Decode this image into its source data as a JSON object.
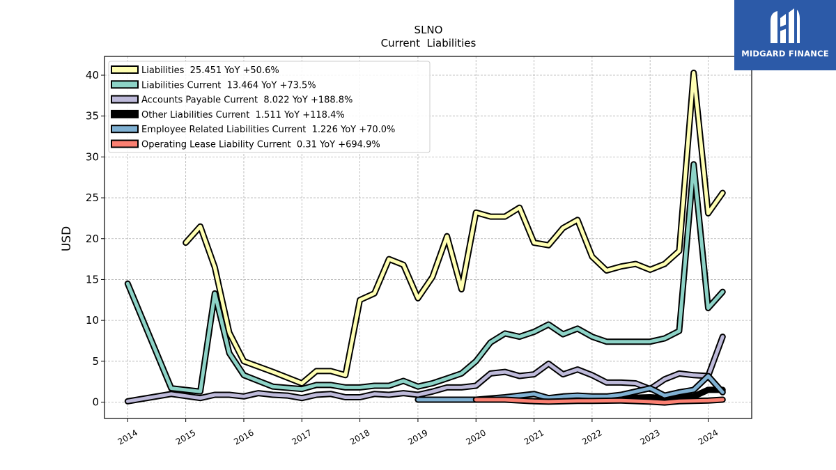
{
  "chart_data": {
    "type": "line",
    "title": "SLNO",
    "subtitle": "Current  Liabilities",
    "ylabel": "USD",
    "xlabel": "",
    "xlim": [
      2013.6,
      2024.75
    ],
    "ylim": [
      -2,
      42.3
    ],
    "yticks": [
      0,
      5,
      10,
      15,
      20,
      25,
      30,
      35,
      40
    ],
    "xticks": [
      "2014",
      "2015",
      "2016",
      "2017",
      "2018",
      "2019",
      "2020",
      "2021",
      "2022",
      "2023",
      "2024"
    ],
    "grid": true,
    "legend_position": "top-left",
    "series": [
      {
        "name": "Liabilities  25.451 YoY +50.6%",
        "color": "#ffffb3",
        "points": [
          [
            2015.0,
            19.5
          ],
          [
            2015.25,
            21.5
          ],
          [
            2015.5,
            16.5
          ],
          [
            2015.75,
            8.5
          ],
          [
            2016.0,
            5.0
          ],
          [
            2016.5,
            3.7
          ],
          [
            2017.0,
            2.3
          ],
          [
            2017.25,
            3.8
          ],
          [
            2017.5,
            3.8
          ],
          [
            2017.75,
            3.3
          ],
          [
            2018.0,
            12.5
          ],
          [
            2018.25,
            13.3
          ],
          [
            2018.5,
            17.5
          ],
          [
            2018.75,
            16.8
          ],
          [
            2019.0,
            12.7
          ],
          [
            2019.25,
            15.3
          ],
          [
            2019.5,
            20.3
          ],
          [
            2019.75,
            13.8
          ],
          [
            2020.0,
            23.2
          ],
          [
            2020.25,
            22.7
          ],
          [
            2020.5,
            22.7
          ],
          [
            2020.75,
            23.8
          ],
          [
            2021.0,
            19.5
          ],
          [
            2021.25,
            19.2
          ],
          [
            2021.5,
            21.3
          ],
          [
            2021.75,
            22.3
          ],
          [
            2022.0,
            17.8
          ],
          [
            2022.25,
            16.1
          ],
          [
            2022.5,
            16.6
          ],
          [
            2022.75,
            16.9
          ],
          [
            2023.0,
            16.2
          ],
          [
            2023.25,
            16.9
          ],
          [
            2023.5,
            18.5
          ],
          [
            2023.75,
            40.3
          ],
          [
            2024.0,
            23.1
          ],
          [
            2024.25,
            25.6
          ]
        ]
      },
      {
        "name": "Liabilities Current  13.464 YoY +73.5%",
        "color": "#8dd3c7",
        "points": [
          [
            2014.0,
            14.5
          ],
          [
            2014.75,
            1.7
          ],
          [
            2015.25,
            1.3
          ],
          [
            2015.5,
            13.3
          ],
          [
            2015.75,
            6.0
          ],
          [
            2016.0,
            3.3
          ],
          [
            2016.5,
            1.9
          ],
          [
            2017.0,
            1.6
          ],
          [
            2017.25,
            2.1
          ],
          [
            2017.5,
            2.1
          ],
          [
            2017.75,
            1.8
          ],
          [
            2018.0,
            1.8
          ],
          [
            2018.25,
            2.0
          ],
          [
            2018.5,
            2.0
          ],
          [
            2018.75,
            2.6
          ],
          [
            2019.0,
            1.9
          ],
          [
            2019.25,
            2.3
          ],
          [
            2019.5,
            2.9
          ],
          [
            2019.75,
            3.5
          ],
          [
            2020.0,
            5.0
          ],
          [
            2020.25,
            7.3
          ],
          [
            2020.5,
            8.4
          ],
          [
            2020.75,
            8.0
          ],
          [
            2021.0,
            8.6
          ],
          [
            2021.25,
            9.5
          ],
          [
            2021.5,
            8.3
          ],
          [
            2021.75,
            9.0
          ],
          [
            2022.0,
            8.0
          ],
          [
            2022.25,
            7.4
          ],
          [
            2022.5,
            7.4
          ],
          [
            2022.75,
            7.4
          ],
          [
            2023.0,
            7.4
          ],
          [
            2023.25,
            7.8
          ],
          [
            2023.5,
            8.7
          ],
          [
            2023.75,
            29.1
          ],
          [
            2024.0,
            11.5
          ],
          [
            2024.25,
            13.5
          ]
        ]
      },
      {
        "name": "Accounts Payable Current  8.022 YoY +188.8%",
        "color": "#bebada",
        "points": [
          [
            2014.0,
            0.1
          ],
          [
            2014.75,
            1.0
          ],
          [
            2015.25,
            0.5
          ],
          [
            2015.5,
            0.9
          ],
          [
            2015.75,
            0.9
          ],
          [
            2016.0,
            0.7
          ],
          [
            2016.25,
            1.1
          ],
          [
            2016.5,
            0.9
          ],
          [
            2016.75,
            0.8
          ],
          [
            2017.0,
            0.5
          ],
          [
            2017.25,
            0.9
          ],
          [
            2017.5,
            1.0
          ],
          [
            2017.75,
            0.6
          ],
          [
            2018.0,
            0.6
          ],
          [
            2018.25,
            1.0
          ],
          [
            2018.5,
            0.9
          ],
          [
            2018.75,
            1.1
          ],
          [
            2019.0,
            0.9
          ],
          [
            2019.25,
            1.3
          ],
          [
            2019.5,
            1.8
          ],
          [
            2019.75,
            1.8
          ],
          [
            2020.0,
            2.0
          ],
          [
            2020.25,
            3.5
          ],
          [
            2020.5,
            3.7
          ],
          [
            2020.75,
            3.2
          ],
          [
            2021.0,
            3.4
          ],
          [
            2021.25,
            4.7
          ],
          [
            2021.5,
            3.4
          ],
          [
            2021.75,
            4.0
          ],
          [
            2022.0,
            3.3
          ],
          [
            2022.25,
            2.4
          ],
          [
            2022.5,
            2.4
          ],
          [
            2022.75,
            2.3
          ],
          [
            2023.0,
            1.6
          ],
          [
            2023.25,
            2.8
          ],
          [
            2023.5,
            3.5
          ],
          [
            2023.75,
            3.3
          ],
          [
            2024.0,
            3.2
          ],
          [
            2024.25,
            8.0
          ]
        ]
      },
      {
        "name": "Other Liabilities Current  1.511 YoY +118.4%",
        "color": "#000000",
        "points": [
          [
            2022.0,
            0.4
          ],
          [
            2022.5,
            0.5
          ],
          [
            2023.0,
            0.6
          ],
          [
            2023.25,
            0.5
          ],
          [
            2023.5,
            0.7
          ],
          [
            2023.75,
            0.7
          ],
          [
            2024.0,
            1.5
          ],
          [
            2024.25,
            1.5
          ]
        ]
      },
      {
        "name": "Employee Related Liabilities Current  1.226 YoY +70.0%",
        "color": "#80b1d3",
        "points": [
          [
            2019.0,
            0.3
          ],
          [
            2019.25,
            0.3
          ],
          [
            2019.5,
            0.3
          ],
          [
            2019.75,
            0.3
          ],
          [
            2020.0,
            0.3
          ],
          [
            2020.5,
            0.6
          ],
          [
            2021.0,
            1.0
          ],
          [
            2021.25,
            0.5
          ],
          [
            2021.5,
            0.7
          ],
          [
            2021.75,
            0.8
          ],
          [
            2022.0,
            0.7
          ],
          [
            2022.25,
            0.7
          ],
          [
            2022.5,
            0.9
          ],
          [
            2022.75,
            1.3
          ],
          [
            2023.0,
            1.7
          ],
          [
            2023.25,
            0.8
          ],
          [
            2023.5,
            1.2
          ],
          [
            2023.75,
            1.5
          ],
          [
            2024.0,
            3.2
          ],
          [
            2024.25,
            1.2
          ]
        ]
      },
      {
        "name": "Operating Lease Liability Current  0.31 YoY +694.9%",
        "color": "#fb8072",
        "points": [
          [
            2020.0,
            0.3
          ],
          [
            2020.5,
            0.3
          ],
          [
            2021.0,
            0.1
          ],
          [
            2021.25,
            0.05
          ],
          [
            2021.75,
            0.15
          ],
          [
            2022.0,
            0.15
          ],
          [
            2022.5,
            0.2
          ],
          [
            2023.0,
            0.05
          ],
          [
            2023.25,
            -0.05
          ],
          [
            2023.5,
            0.1
          ],
          [
            2024.0,
            0.2
          ],
          [
            2024.25,
            0.3
          ]
        ]
      }
    ]
  },
  "logo": {
    "text": "MIDGARD FINANCE",
    "bg_color": "#2c5aa8"
  }
}
